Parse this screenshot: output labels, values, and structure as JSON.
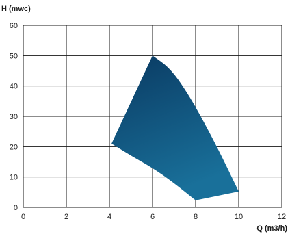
{
  "chart_data": {
    "type": "area",
    "title": "",
    "xlabel": "Q (m3/h)",
    "ylabel": "H (mwc)",
    "xlim": [
      0,
      12
    ],
    "ylim": [
      0,
      60
    ],
    "x_ticks": [
      "0",
      "2",
      "4",
      "6",
      "8",
      "10",
      "12"
    ],
    "y_ticks": [
      "0",
      "10",
      "20",
      "30",
      "40",
      "50",
      "60"
    ],
    "grid": true,
    "series": [
      {
        "type": "region",
        "color": "#0a5a85",
        "color_dark": "#0a3f66",
        "color_light": "#1b6b93",
        "upper_curve": [
          [
            6.0,
            50
          ],
          [
            6.8,
            46
          ],
          [
            7.6,
            38
          ],
          [
            8.4,
            28
          ],
          [
            9.2,
            17
          ],
          [
            10.0,
            5.2
          ]
        ],
        "lower_curve": [
          [
            4.1,
            21
          ],
          [
            5.0,
            17
          ],
          [
            6.0,
            13
          ],
          [
            7.0,
            8
          ],
          [
            8.0,
            2.3
          ]
        ],
        "right_edge": [
          [
            8.0,
            2.3
          ],
          [
            10.0,
            5.2
          ]
        ],
        "left_edge": [
          [
            4.1,
            21
          ],
          [
            6.0,
            50
          ]
        ]
      }
    ]
  }
}
